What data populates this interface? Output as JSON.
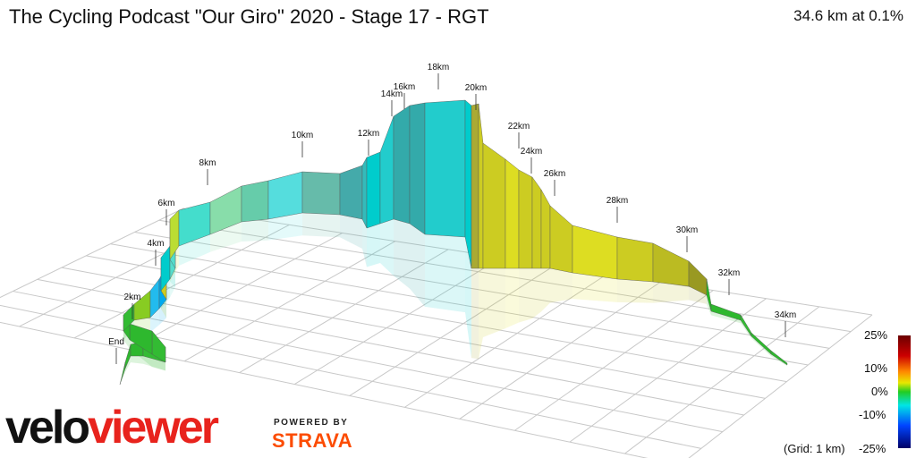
{
  "header": {
    "title": "The Cycling Podcast \"Our Giro\" 2020 - Stage 17 - RGT",
    "summary": "34.6 km at 0.1%"
  },
  "legend": {
    "labels": [
      "25%",
      "10%",
      "0%",
      "-10%",
      "-25%"
    ],
    "grid_note": "(Grid: 1 km)",
    "colors": [
      "#6b0000",
      "#cc0000",
      "#ff6600",
      "#e8e800",
      "#22cc22",
      "#00e5e5",
      "#0044ff",
      "#000066"
    ]
  },
  "branding": {
    "velo": "velo",
    "viewer": "viewer",
    "powered_by": "POWERED BY",
    "strava": "STRAVA"
  },
  "chart_data": {
    "type": "area",
    "view": "3d-elevation-profile",
    "distance_km": 34.6,
    "avg_gradient_pct": 0.1,
    "km_labels": [
      "End",
      "2km",
      "4km",
      "6km",
      "8km",
      "10km",
      "12km",
      "14km",
      "16km",
      "18km",
      "20km",
      "22km",
      "24km",
      "26km",
      "28km",
      "30km",
      "32km",
      "34km"
    ],
    "gradient_range_pct": [
      -25,
      25
    ]
  }
}
